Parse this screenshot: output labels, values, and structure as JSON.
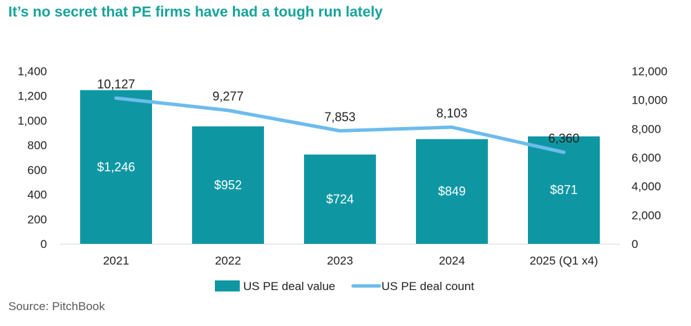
{
  "header": {
    "title": "It’s no secret that PE firms have had a tough run lately"
  },
  "footer": {
    "source": "Source: PitchBook"
  },
  "chart_data": {
    "type": "bar",
    "categories": [
      "2021",
      "2022",
      "2023",
      "2024",
      "2025 (Q1 x4)"
    ],
    "series": [
      {
        "name": "US PE deal value",
        "kind": "bar",
        "axis": "left",
        "values": [
          1246,
          952,
          724,
          849,
          871
        ],
        "labels": [
          "$1,246",
          "$952",
          "$724",
          "$849",
          "$871"
        ],
        "color": "#0e97a2"
      },
      {
        "name": "US PE deal count",
        "kind": "line",
        "axis": "right",
        "values": [
          10127,
          9277,
          7853,
          8103,
          6360
        ],
        "labels": [
          "10,127",
          "9,277",
          "7,853",
          "8,103",
          "6,360"
        ],
        "color": "#6cbcec"
      }
    ],
    "y_left": {
      "min": 0,
      "max": 1400,
      "ticks": [
        "0",
        "200",
        "400",
        "600",
        "800",
        "1,000",
        "1,200",
        "1,400"
      ]
    },
    "y_right": {
      "min": 0,
      "max": 12000,
      "ticks": [
        "0",
        "2,000",
        "4,000",
        "6,000",
        "8,000",
        "10,000",
        "12,000"
      ]
    },
    "legend": [
      "US PE deal value",
      "US PE deal count"
    ],
    "legend_position": "bottom",
    "grid": false
  }
}
